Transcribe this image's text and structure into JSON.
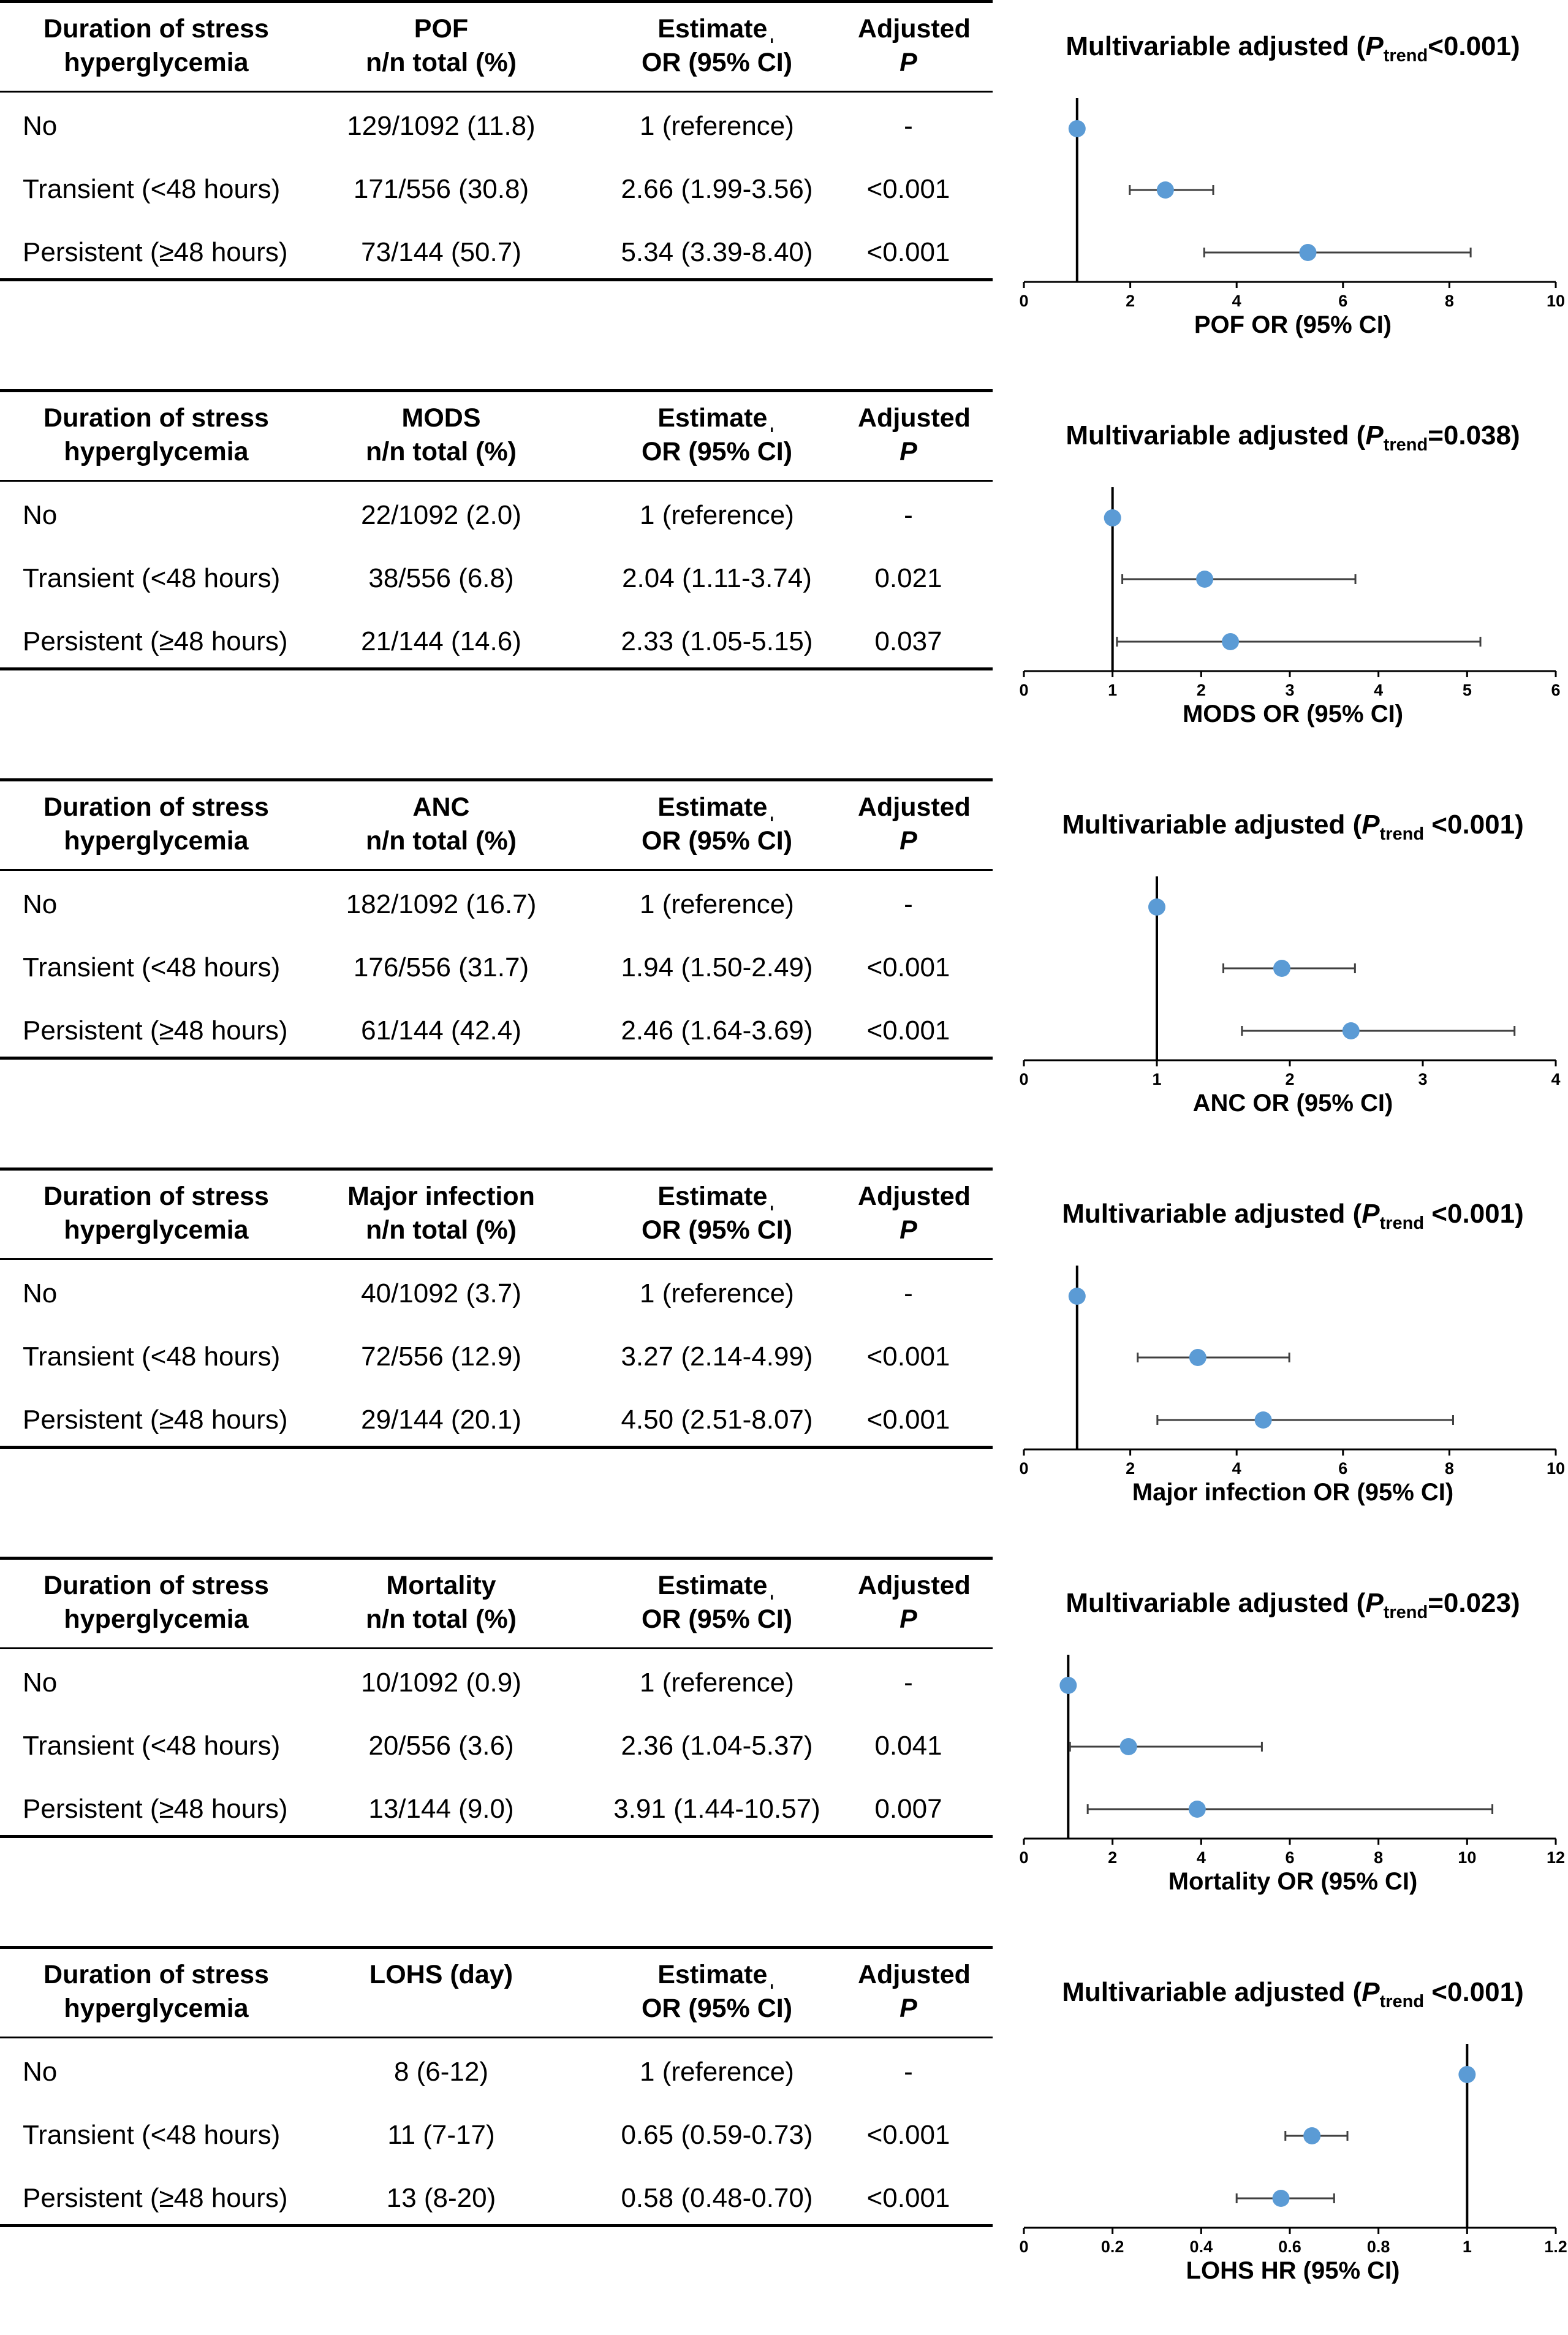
{
  "common": {
    "header_col1_line1": "Duration of stress",
    "header_col1_line2": "hyperglycemia",
    "header_estimate_line1": "Estimateˌ",
    "header_estimate_line2": "OR (95% CI)",
    "header_p_line1": "Adjusted",
    "header_p_line2": "P",
    "title_prefix": "Multivariable adjusted (",
    "title_p": "P",
    "title_sub": "trend",
    "title_suffix": ")"
  },
  "panels": [
    {
      "header_outcome_line1": "POF",
      "header_outcome_line2": "n/n total (%)",
      "rows": [
        {
          "group": "No",
          "count": "129/1092 (11.8)",
          "estimate": "1 (reference)",
          "p": "-"
        },
        {
          "group": "Transient (<48 hours)",
          "count": "171/556 (30.8)",
          "estimate": "2.66 (1.99-3.56)",
          "p": "<0.001"
        },
        {
          "group": "Persistent (≥48 hours)",
          "count": "73/144 (50.7)",
          "estimate": "5.34 (3.39-8.40)",
          "p": "<0.001"
        }
      ],
      "title_value": "<0.001",
      "xlabel": "POF OR (95% CI)"
    },
    {
      "header_outcome_line1": "MODS",
      "header_outcome_line2": "n/n total (%)",
      "rows": [
        {
          "group": "No",
          "count": "22/1092 (2.0)",
          "estimate": "1 (reference)",
          "p": "-"
        },
        {
          "group": "Transient (<48 hours)",
          "count": "38/556 (6.8)",
          "estimate": "2.04 (1.11-3.74)",
          "p": "0.021"
        },
        {
          "group": "Persistent (≥48 hours)",
          "count": "21/144 (14.6)",
          "estimate": "2.33 (1.05-5.15)",
          "p": "0.037"
        }
      ],
      "title_value": "=0.038",
      "xlabel": "MODS OR (95% CI)"
    },
    {
      "header_outcome_line1": "ANC",
      "header_outcome_line2": "n/n total (%)",
      "rows": [
        {
          "group": "No",
          "count": "182/1092 (16.7)",
          "estimate": "1 (reference)",
          "p": "-"
        },
        {
          "group": "Transient (<48 hours)",
          "count": "176/556 (31.7)",
          "estimate": "1.94 (1.50-2.49)",
          "p": "<0.001"
        },
        {
          "group": "Persistent (≥48 hours)",
          "count": "61/144 (42.4)",
          "estimate": "2.46 (1.64-3.69)",
          "p": "<0.001"
        }
      ],
      "title_value": " <0.001",
      "xlabel": "ANC OR (95% CI)"
    },
    {
      "header_outcome_line1": "Major infection",
      "header_outcome_line2": "n/n total (%)",
      "rows": [
        {
          "group": "No",
          "count": "40/1092 (3.7)",
          "estimate": "1 (reference)",
          "p": "-"
        },
        {
          "group": "Transient (<48 hours)",
          "count": "72/556 (12.9)",
          "estimate": "3.27 (2.14-4.99)",
          "p": "<0.001"
        },
        {
          "group": "Persistent (≥48 hours)",
          "count": "29/144 (20.1)",
          "estimate": "4.50 (2.51-8.07)",
          "p": "<0.001"
        }
      ],
      "title_value": " <0.001",
      "xlabel": "Major infection OR (95% CI)"
    },
    {
      "header_outcome_line1": "Mortality",
      "header_outcome_line2": "n/n total (%)",
      "rows": [
        {
          "group": "No",
          "count": "10/1092 (0.9)",
          "estimate": "1 (reference)",
          "p": "-"
        },
        {
          "group": "Transient (<48 hours)",
          "count": "20/556 (3.6)",
          "estimate": "2.36 (1.04-5.37)",
          "p": "0.041"
        },
        {
          "group": "Persistent (≥48 hours)",
          "count": "13/144 (9.0)",
          "estimate": "3.91 (1.44-10.57)",
          "p": "0.007"
        }
      ],
      "title_value": "=0.023",
      "xlabel": "Mortality OR (95% CI)"
    },
    {
      "header_outcome_line1": "LOHS (day)",
      "header_outcome_line2": "",
      "rows": [
        {
          "group": "No",
          "count": "8 (6-12)",
          "estimate": "1 (reference)",
          "p": "-"
        },
        {
          "group": "Transient (<48 hours)",
          "count": "11 (7-17)",
          "estimate": "0.65 (0.59-0.73)",
          "p": "<0.001"
        },
        {
          "group": "Persistent (≥48 hours)",
          "count": "13 (8-20)",
          "estimate": "0.58 (0.48-0.70)",
          "p": "<0.001"
        }
      ],
      "title_value": " <0.001",
      "xlabel": "LOHS HR (95% CI)"
    }
  ],
  "chart_data": [
    {
      "type": "forest",
      "title": "Multivariable adjusted (P trend <0.001)",
      "xlabel": "POF OR (95% CI)",
      "xlim": [
        0,
        10
      ],
      "ticks": [
        "0",
        "2",
        "4",
        "6",
        "8",
        "10"
      ],
      "tick_values": [
        0,
        2,
        4,
        6,
        8,
        10
      ],
      "reference": 1,
      "points": [
        {
          "label": "No",
          "est": 1,
          "lo": 1,
          "hi": 1
        },
        {
          "label": "Transient (<48 hours)",
          "est": 2.66,
          "lo": 1.99,
          "hi": 3.56
        },
        {
          "label": "Persistent (≥48 hours)",
          "est": 5.34,
          "lo": 3.39,
          "hi": 8.4
        }
      ]
    },
    {
      "type": "forest",
      "title": "Multivariable adjusted (P trend =0.038)",
      "xlabel": "MODS OR (95% CI)",
      "xlim": [
        0,
        6
      ],
      "ticks": [
        "0",
        "1",
        "2",
        "3",
        "4",
        "5",
        "6"
      ],
      "tick_values": [
        0,
        1,
        2,
        3,
        4,
        5,
        6
      ],
      "reference": 1,
      "points": [
        {
          "label": "No",
          "est": 1,
          "lo": 1,
          "hi": 1
        },
        {
          "label": "Transient (<48 hours)",
          "est": 2.04,
          "lo": 1.11,
          "hi": 3.74
        },
        {
          "label": "Persistent (≥48 hours)",
          "est": 2.33,
          "lo": 1.05,
          "hi": 5.15
        }
      ]
    },
    {
      "type": "forest",
      "title": "Multivariable adjusted (P trend <0.001)",
      "xlabel": "ANC OR (95% CI)",
      "xlim": [
        0,
        4
      ],
      "ticks": [
        "0",
        "1",
        "2",
        "3",
        "4"
      ],
      "tick_values": [
        0,
        1,
        2,
        3,
        4
      ],
      "reference": 1,
      "points": [
        {
          "label": "No",
          "est": 1,
          "lo": 1,
          "hi": 1
        },
        {
          "label": "Transient (<48 hours)",
          "est": 1.94,
          "lo": 1.5,
          "hi": 2.49
        },
        {
          "label": "Persistent (≥48 hours)",
          "est": 2.46,
          "lo": 1.64,
          "hi": 3.69
        }
      ]
    },
    {
      "type": "forest",
      "title": "Multivariable adjusted (P trend <0.001)",
      "xlabel": "Major infection OR (95% CI)",
      "xlim": [
        0,
        10
      ],
      "ticks": [
        "0",
        "2",
        "4",
        "6",
        "8",
        "10"
      ],
      "tick_values": [
        0,
        2,
        4,
        6,
        8,
        10
      ],
      "reference": 1,
      "points": [
        {
          "label": "No",
          "est": 1,
          "lo": 1,
          "hi": 1
        },
        {
          "label": "Transient (<48 hours)",
          "est": 3.27,
          "lo": 2.14,
          "hi": 4.99
        },
        {
          "label": "Persistent (≥48 hours)",
          "est": 4.5,
          "lo": 2.51,
          "hi": 8.07
        }
      ]
    },
    {
      "type": "forest",
      "title": "Multivariable adjusted (P trend =0.023)",
      "xlabel": "Mortality OR (95% CI)",
      "xlim": [
        0,
        12
      ],
      "ticks": [
        "0",
        "2",
        "4",
        "6",
        "8",
        "10",
        "12"
      ],
      "tick_values": [
        0,
        2,
        4,
        6,
        8,
        10,
        12
      ],
      "reference": 1,
      "points": [
        {
          "label": "No",
          "est": 1,
          "lo": 1,
          "hi": 1
        },
        {
          "label": "Transient (<48 hours)",
          "est": 2.36,
          "lo": 1.04,
          "hi": 5.37
        },
        {
          "label": "Persistent (≥48 hours)",
          "est": 3.91,
          "lo": 1.44,
          "hi": 10.57
        }
      ]
    },
    {
      "type": "forest",
      "title": "Multivariable adjusted (P trend <0.001)",
      "xlabel": "LOHS HR (95% CI)",
      "xlim": [
        0,
        1.2
      ],
      "ticks": [
        "0",
        "0.2",
        "0.4",
        "0.6",
        "0.8",
        "1",
        "1.2"
      ],
      "tick_values": [
        0,
        0.2,
        0.4,
        0.6,
        0.8,
        1,
        1.2
      ],
      "reference": 1,
      "points": [
        {
          "label": "No",
          "est": 1,
          "lo": 1,
          "hi": 1
        },
        {
          "label": "Transient (<48 hours)",
          "est": 0.65,
          "lo": 0.59,
          "hi": 0.73
        },
        {
          "label": "Persistent (≥48 hours)",
          "est": 0.58,
          "lo": 0.48,
          "hi": 0.7
        }
      ]
    }
  ],
  "colors": {
    "point": "#5b9bd5",
    "line": "#000000",
    "ci": "#404040"
  }
}
